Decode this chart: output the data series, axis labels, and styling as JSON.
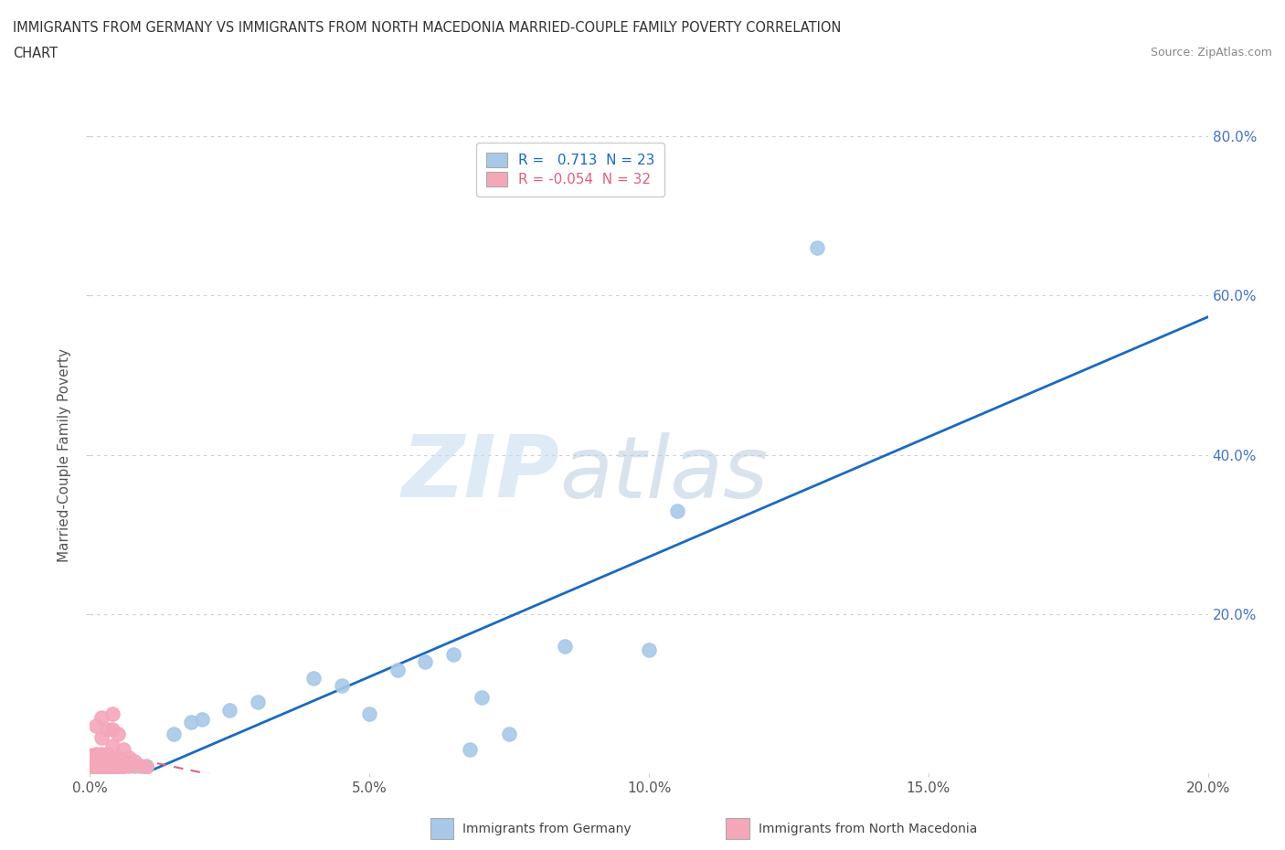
{
  "title_line1": "IMMIGRANTS FROM GERMANY VS IMMIGRANTS FROM NORTH MACEDONIA MARRIED-COUPLE FAMILY POVERTY CORRELATION",
  "title_line2": "CHART",
  "source": "Source: ZipAtlas.com",
  "ylabel": "Married-Couple Family Poverty",
  "xlim": [
    0.0,
    0.2
  ],
  "ylim": [
    0.0,
    0.8
  ],
  "xtick_labels": [
    "0.0%",
    "5.0%",
    "10.0%",
    "15.0%",
    "20.0%"
  ],
  "xtick_values": [
    0.0,
    0.05,
    0.1,
    0.15,
    0.2
  ],
  "ytick_labels": [
    "20.0%",
    "40.0%",
    "60.0%",
    "80.0%"
  ],
  "ytick_values": [
    0.2,
    0.4,
    0.6,
    0.8
  ],
  "germany_r": 0.713,
  "germany_n": 23,
  "macedonia_r": -0.054,
  "macedonia_n": 32,
  "germany_color": "#a8c8e8",
  "germany_line_color": "#1a6abf",
  "macedonia_color": "#f4a7b9",
  "macedonia_line_color": "#e06080",
  "watermark_zip": "ZIP",
  "watermark_atlas": "atlas",
  "background_color": "#ffffff",
  "grid_color": "#cccccc",
  "germany_x": [
    0.002,
    0.004,
    0.006,
    0.008,
    0.01,
    0.015,
    0.018,
    0.02,
    0.025,
    0.03,
    0.04,
    0.045,
    0.05,
    0.055,
    0.06,
    0.065,
    0.068,
    0.07,
    0.075,
    0.085,
    0.1,
    0.105,
    0.13
  ],
  "germany_y": [
    0.005,
    0.005,
    0.01,
    0.01,
    0.01,
    0.05,
    0.065,
    0.068,
    0.08,
    0.09,
    0.12,
    0.11,
    0.075,
    0.13,
    0.14,
    0.15,
    0.03,
    0.095,
    0.05,
    0.16,
    0.155,
    0.33,
    0.66
  ],
  "macedonia_x": [
    0.0,
    0.0,
    0.001,
    0.001,
    0.001,
    0.001,
    0.002,
    0.002,
    0.002,
    0.002,
    0.002,
    0.003,
    0.003,
    0.003,
    0.003,
    0.003,
    0.004,
    0.004,
    0.004,
    0.004,
    0.004,
    0.005,
    0.005,
    0.005,
    0.005,
    0.006,
    0.006,
    0.007,
    0.007,
    0.008,
    0.009,
    0.01
  ],
  "macedonia_y": [
    0.01,
    0.02,
    0.005,
    0.01,
    0.025,
    0.06,
    0.008,
    0.015,
    0.025,
    0.045,
    0.07,
    0.005,
    0.01,
    0.015,
    0.025,
    0.055,
    0.01,
    0.02,
    0.035,
    0.055,
    0.075,
    0.008,
    0.012,
    0.02,
    0.05,
    0.01,
    0.03,
    0.01,
    0.02,
    0.015,
    0.01,
    0.008
  ],
  "legend_bottom_germany": "Immigrants from Germany",
  "legend_bottom_macedonia": "Immigrants from North Macedonia"
}
